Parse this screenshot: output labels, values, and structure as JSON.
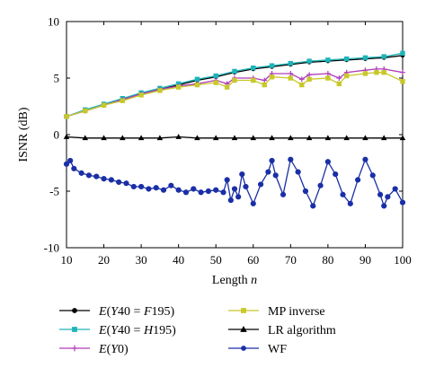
{
  "chart_data": {
    "type": "line",
    "xlabel": "Length n",
    "ylabel": "ISNR (dB)",
    "xlim": [
      10,
      100
    ],
    "ylim": [
      -10,
      10
    ],
    "x_ticks": [
      10,
      20,
      30,
      40,
      50,
      60,
      70,
      80,
      90,
      100
    ],
    "y_ticks": [
      -10,
      -5,
      0,
      5,
      10
    ],
    "grid": false,
    "legend_position": "bottom",
    "series": [
      {
        "name": "E(Y40 = F195)",
        "color": "#000000",
        "marker": "circle",
        "x": [
          10,
          15,
          20,
          25,
          30,
          35,
          40,
          45,
          50,
          55,
          60,
          65,
          70,
          75,
          80,
          85,
          90,
          95,
          100
        ],
        "values": [
          1.6,
          2.1,
          2.6,
          3.1,
          3.6,
          4.0,
          4.4,
          4.8,
          5.1,
          5.5,
          5.8,
          6.0,
          6.2,
          6.4,
          6.5,
          6.6,
          6.7,
          6.8,
          7.0
        ]
      },
      {
        "name": "E(Y40 = H195)",
        "color": "#1fb4b8",
        "marker": "square",
        "x": [
          10,
          15,
          20,
          25,
          30,
          35,
          40,
          45,
          50,
          55,
          60,
          65,
          70,
          75,
          80,
          85,
          90,
          95,
          100
        ],
        "values": [
          1.6,
          2.2,
          2.7,
          3.2,
          3.7,
          4.1,
          4.5,
          4.9,
          5.2,
          5.6,
          5.9,
          6.1,
          6.3,
          6.5,
          6.6,
          6.7,
          6.8,
          6.9,
          7.2
        ]
      },
      {
        "name": "E(Y0)",
        "color": "#b03cb8",
        "marker": "plus",
        "x": [
          10,
          15,
          20,
          25,
          30,
          35,
          40,
          45,
          50,
          53,
          55,
          60,
          63,
          65,
          70,
          73,
          75,
          80,
          83,
          85,
          90,
          93,
          95,
          100
        ],
        "values": [
          1.6,
          2.1,
          2.6,
          3.1,
          3.6,
          4.0,
          4.3,
          4.5,
          4.8,
          4.5,
          5.0,
          5.0,
          4.8,
          5.4,
          5.4,
          4.9,
          5.3,
          5.4,
          5.0,
          5.5,
          5.7,
          5.8,
          5.8,
          5.5
        ]
      },
      {
        "name": "MP inverse",
        "color": "#c8c82a",
        "marker": "square",
        "x": [
          10,
          15,
          20,
          25,
          30,
          35,
          40,
          45,
          50,
          53,
          55,
          60,
          63,
          65,
          70,
          73,
          75,
          80,
          83,
          85,
          90,
          93,
          95,
          100
        ],
        "values": [
          1.6,
          2.1,
          2.6,
          3.0,
          3.5,
          3.9,
          4.2,
          4.4,
          4.6,
          4.2,
          4.8,
          4.8,
          4.4,
          5.1,
          5.0,
          4.4,
          4.9,
          5.0,
          4.5,
          5.2,
          5.4,
          5.5,
          5.5,
          4.7
        ]
      },
      {
        "name": "LR algorithm",
        "color": "#000000",
        "marker": "triangle",
        "x": [
          10,
          15,
          20,
          25,
          30,
          35,
          40,
          45,
          50,
          55,
          60,
          65,
          70,
          75,
          80,
          85,
          90,
          95,
          100
        ],
        "values": [
          -0.2,
          -0.3,
          -0.3,
          -0.3,
          -0.3,
          -0.3,
          -0.2,
          -0.3,
          -0.3,
          -0.3,
          -0.3,
          -0.3,
          -0.3,
          -0.3,
          -0.3,
          -0.3,
          -0.3,
          -0.3,
          -0.3
        ]
      },
      {
        "name": "WF",
        "color": "#1a2fa6",
        "marker": "circle",
        "x": [
          10,
          11,
          12,
          14,
          16,
          18,
          20,
          22,
          24,
          26,
          28,
          30,
          32,
          34,
          36,
          38,
          40,
          42,
          44,
          46,
          48,
          50,
          52,
          53,
          54,
          55,
          56,
          57,
          58,
          60,
          62,
          64,
          65,
          66,
          68,
          70,
          72,
          74,
          76,
          78,
          80,
          82,
          84,
          86,
          88,
          90,
          92,
          94,
          95,
          96,
          98,
          100
        ],
        "values": [
          -2.6,
          -2.3,
          -3.0,
          -3.4,
          -3.6,
          -3.7,
          -3.9,
          -4.0,
          -4.2,
          -4.3,
          -4.6,
          -4.6,
          -4.8,
          -4.7,
          -4.9,
          -4.5,
          -4.9,
          -5.1,
          -4.8,
          -5.1,
          -5.0,
          -4.9,
          -5.1,
          -4.0,
          -5.8,
          -4.8,
          -5.5,
          -3.5,
          -4.6,
          -6.1,
          -4.4,
          -3.3,
          -2.3,
          -3.6,
          -5.3,
          -2.2,
          -3.3,
          -5.0,
          -6.3,
          -4.5,
          -2.4,
          -3.5,
          -5.3,
          -6.1,
          -4.0,
          -2.2,
          -3.6,
          -5.3,
          -6.3,
          -5.5,
          -4.8,
          -6.0
        ]
      }
    ]
  }
}
